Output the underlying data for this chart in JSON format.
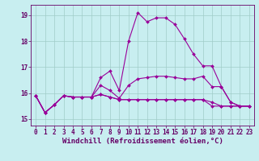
{
  "xlabel": "Windchill (Refroidissement éolien,°C)",
  "bg_color": "#c8eef0",
  "line_color": "#990099",
  "grid_color": "#a0ccc8",
  "xlim": [
    -0.5,
    23.5
  ],
  "ylim": [
    14.75,
    19.4
  ],
  "yticks": [
    15,
    16,
    17,
    18,
    19
  ],
  "xticks": [
    0,
    1,
    2,
    3,
    4,
    5,
    6,
    7,
    8,
    9,
    10,
    11,
    12,
    13,
    14,
    15,
    16,
    17,
    18,
    19,
    20,
    21,
    22,
    23
  ],
  "series": [
    [
      15.9,
      15.25,
      15.55,
      15.9,
      15.85,
      15.85,
      15.85,
      16.6,
      16.85,
      16.1,
      18.0,
      19.1,
      18.75,
      18.9,
      18.9,
      18.65,
      18.1,
      17.5,
      17.05,
      17.05,
      16.25,
      15.65,
      15.5,
      15.5
    ],
    [
      15.9,
      15.25,
      15.55,
      15.9,
      15.85,
      15.85,
      15.85,
      16.3,
      16.1,
      15.8,
      16.3,
      16.55,
      16.6,
      16.65,
      16.65,
      16.6,
      16.55,
      16.55,
      16.65,
      16.25,
      16.25,
      15.65,
      15.5,
      15.5
    ],
    [
      15.9,
      15.25,
      15.55,
      15.9,
      15.85,
      15.85,
      15.85,
      15.95,
      15.85,
      15.75,
      15.75,
      15.75,
      15.75,
      15.75,
      15.75,
      15.75,
      15.75,
      15.75,
      15.75,
      15.65,
      15.5,
      15.5,
      15.5,
      15.5
    ],
    [
      15.9,
      15.25,
      15.55,
      15.9,
      15.85,
      15.85,
      15.85,
      15.95,
      15.85,
      15.75,
      15.75,
      15.75,
      15.75,
      15.75,
      15.75,
      15.75,
      15.75,
      15.75,
      15.75,
      15.5,
      15.5,
      15.5,
      15.5,
      15.5
    ]
  ],
  "markersize": 2.0,
  "linewidth": 0.8,
  "xlabel_fontsize": 6.5,
  "tick_fontsize": 5.5,
  "label_color": "#660066"
}
